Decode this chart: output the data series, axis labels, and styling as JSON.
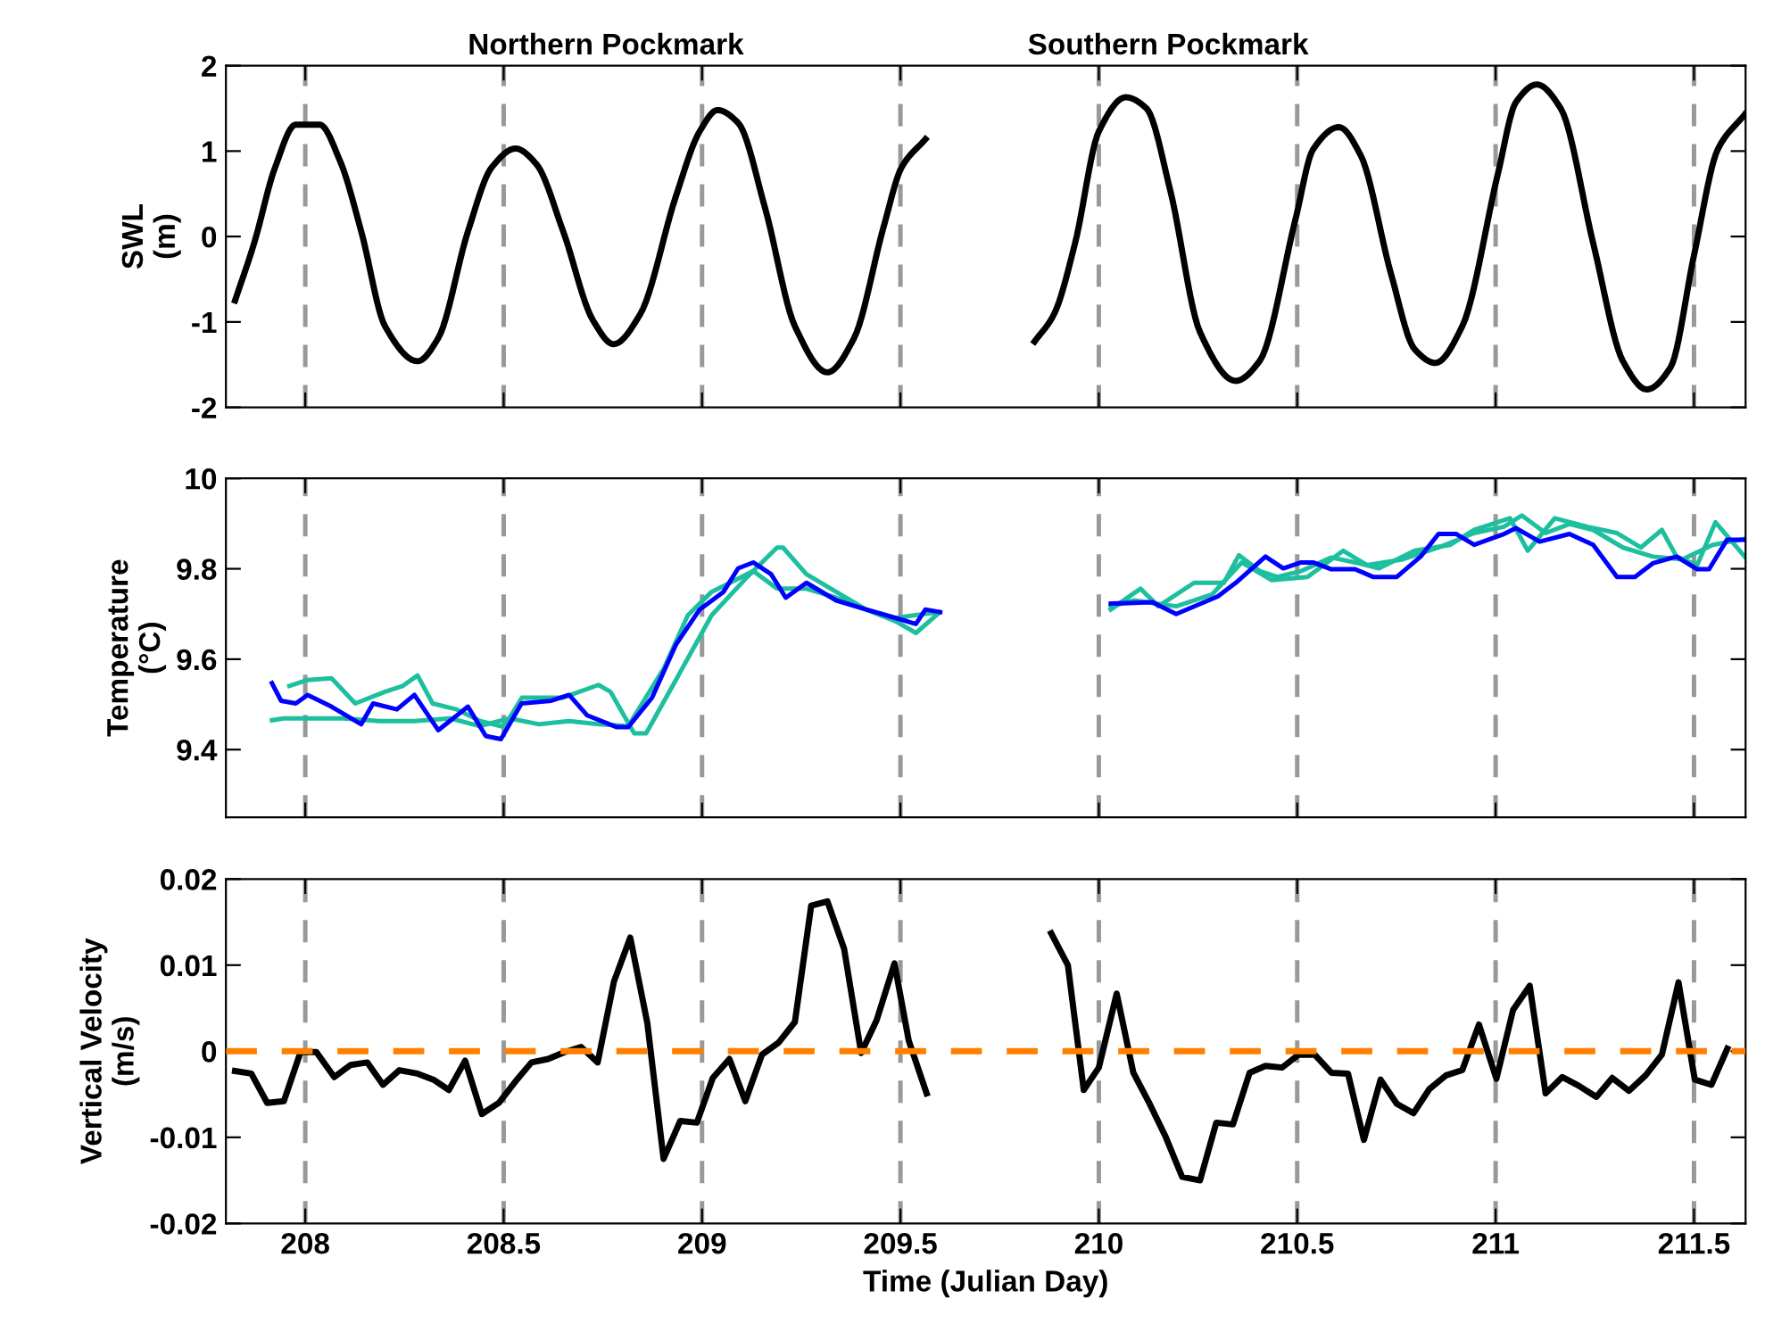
{
  "chart_data": [
    {
      "type": "line",
      "ylabel": "SWL\n(m)",
      "annotations": [
        "Northern Pockmark",
        "Southern Pockmark"
      ],
      "xlim": [
        207.8,
        211.63
      ],
      "xticks": [
        208,
        208.5,
        209,
        209.5,
        210,
        210.5,
        211,
        211.5
      ],
      "ylim": [
        -2,
        2
      ],
      "yticks": [
        -2,
        -1,
        0,
        1,
        2
      ],
      "tick_labels": "y",
      "grid": false,
      "ref_lines": [
        {
          "axis": "x",
          "value": 208,
          "color": "#999999",
          "line_style": "dashed"
        },
        {
          "axis": "x",
          "value": 208.5,
          "color": "#999999",
          "line_style": "dashed"
        },
        {
          "axis": "x",
          "value": 209,
          "color": "#999999",
          "line_style": "dashed"
        },
        {
          "axis": "x",
          "value": 209.5,
          "color": "#999999",
          "line_style": "dashed"
        },
        {
          "axis": "x",
          "value": 210,
          "color": "#999999",
          "line_style": "dashed"
        },
        {
          "axis": "x",
          "value": 210.5,
          "color": "#999999",
          "line_style": "dashed"
        },
        {
          "axis": "x",
          "value": 211,
          "color": "#999999",
          "line_style": "dashed"
        },
        {
          "axis": "x",
          "value": 211.5,
          "color": "#999999",
          "line_style": "dashed"
        }
      ],
      "series": [
        {
          "color": "#000000",
          "x": [
            207.823,
            207.871,
            207.924,
            207.976,
            208.036,
            208.088,
            208.141,
            208.201,
            208.283,
            208.335,
            208.41,
            208.47,
            208.53,
            208.582,
            208.65,
            208.725,
            208.777,
            208.844,
            208.934,
            208.994,
            209.039,
            209.091,
            209.159,
            209.234,
            209.316,
            209.383,
            209.458,
            209.503,
            209.563
          ],
          "values": [
            -0.75,
            -0.08,
            0.81,
            1.31,
            1.31,
            0.88,
            0.06,
            -1.05,
            -1.46,
            -1.19,
            0.06,
            0.81,
            1.03,
            0.85,
            0.06,
            -0.98,
            -1.26,
            -0.91,
            0.47,
            1.23,
            1.48,
            1.33,
            0.33,
            -1.05,
            -1.59,
            -1.19,
            0.12,
            0.81,
            1.14
          ]
        },
        {
          "color": "#000000",
          "x": [
            209.838,
            209.887,
            209.94,
            210.0,
            210.068,
            210.12,
            210.18,
            210.255,
            210.345,
            210.405,
            210.495,
            210.54,
            210.605,
            210.66,
            210.736,
            210.796,
            210.848,
            210.916,
            211.006,
            211.051,
            211.104,
            211.164,
            211.246,
            211.321,
            211.381,
            211.441,
            211.5,
            211.56,
            211.628
          ],
          "values": [
            -1.23,
            -0.91,
            -0.08,
            1.23,
            1.63,
            1.5,
            0.54,
            -1.12,
            -1.69,
            -1.46,
            0.19,
            1.02,
            1.28,
            0.95,
            -0.43,
            -1.32,
            -1.48,
            -1.05,
            0.74,
            1.57,
            1.78,
            1.5,
            -0.08,
            -1.46,
            -1.79,
            -1.53,
            -0.22,
            1.02,
            1.43
          ]
        }
      ]
    },
    {
      "type": "line",
      "ylabel": "Temperature\n(°C)",
      "xlim": [
        207.8,
        211.63
      ],
      "xticks": [
        208,
        208.5,
        209,
        209.5,
        210,
        210.5,
        211,
        211.5
      ],
      "ylim": [
        9.25,
        10
      ],
      "yticks": [
        9.4,
        9.6,
        9.8,
        10
      ],
      "tick_labels": "y",
      "grid": false,
      "ref_lines": [
        {
          "axis": "x",
          "value": 208,
          "color": "#999999",
          "line_style": "dashed"
        },
        {
          "axis": "x",
          "value": 208.5,
          "color": "#999999",
          "line_style": "dashed"
        },
        {
          "axis": "x",
          "value": 209,
          "color": "#999999",
          "line_style": "dashed"
        },
        {
          "axis": "x",
          "value": 209.5,
          "color": "#999999",
          "line_style": "dashed"
        },
        {
          "axis": "x",
          "value": 210,
          "color": "#999999",
          "line_style": "dashed"
        },
        {
          "axis": "x",
          "value": 210.5,
          "color": "#999999",
          "line_style": "dashed"
        },
        {
          "axis": "x",
          "value": 211,
          "color": "#999999",
          "line_style": "dashed"
        },
        {
          "axis": "x",
          "value": 211.5,
          "color": "#999999",
          "line_style": "dashed"
        }
      ],
      "series": [
        {
          "color": "#1dbf9f",
          "x": [
            207.96,
            208.006,
            208.066,
            208.126,
            208.201,
            208.246,
            208.283,
            208.321,
            208.381,
            208.441,
            208.501,
            208.546,
            208.65,
            208.739,
            208.769,
            208.829,
            208.859,
            208.934,
            209.024,
            209.114,
            209.189,
            209.204,
            209.263,
            209.338,
            209.413,
            209.488,
            209.539,
            209.599
          ],
          "values": [
            9.541,
            9.554,
            9.558,
            9.502,
            9.528,
            9.541,
            9.564,
            9.502,
            9.489,
            9.463,
            9.45,
            9.515,
            9.515,
            9.543,
            9.528,
            9.436,
            9.436,
            9.554,
            9.697,
            9.782,
            9.847,
            9.847,
            9.788,
            9.749,
            9.71,
            9.684,
            9.658,
            9.704
          ]
        },
        {
          "color": "#1dbf9f",
          "x": [
            207.916,
            207.946,
            208.006,
            208.096,
            208.186,
            208.275,
            208.365,
            208.44,
            208.515,
            208.59,
            208.665,
            208.739,
            208.814,
            208.904,
            208.964,
            209.024,
            209.084,
            209.129,
            209.189,
            209.263,
            209.338,
            209.413,
            209.488,
            209.533,
            209.599
          ],
          "values": [
            9.465,
            9.469,
            9.469,
            9.469,
            9.463,
            9.463,
            9.469,
            9.452,
            9.469,
            9.456,
            9.463,
            9.456,
            9.452,
            9.58,
            9.697,
            9.749,
            9.775,
            9.795,
            9.756,
            9.756,
            9.736,
            9.71,
            9.691,
            9.697,
            9.704
          ]
        },
        {
          "color": "#0000ff",
          "x": [
            207.916,
            207.939,
            207.976,
            208.006,
            208.066,
            208.141,
            208.171,
            208.231,
            208.275,
            208.335,
            208.41,
            208.455,
            208.493,
            208.545,
            208.62,
            208.665,
            208.71,
            208.784,
            208.814,
            208.874,
            208.934,
            208.994,
            209.054,
            209.091,
            209.129,
            209.174,
            209.211,
            209.263,
            209.338,
            209.413,
            209.488,
            209.539,
            209.563,
            209.6
          ],
          "values": [
            9.547,
            9.508,
            9.502,
            9.521,
            9.495,
            9.456,
            9.502,
            9.489,
            9.521,
            9.443,
            9.495,
            9.43,
            9.423,
            9.502,
            9.508,
            9.521,
            9.476,
            9.45,
            9.45,
            9.515,
            9.632,
            9.71,
            9.749,
            9.801,
            9.814,
            9.788,
            9.736,
            9.769,
            9.73,
            9.71,
            9.691,
            9.678,
            9.71,
            9.704
          ]
        },
        {
          "color": "#1dbf9f",
          "x": [
            210.03,
            210.105,
            210.15,
            210.24,
            210.315,
            210.353,
            210.405,
            210.45,
            210.51,
            210.586,
            210.646,
            210.706,
            210.796,
            210.886,
            210.946,
            211.036,
            211.081,
            211.149,
            211.231,
            211.306,
            211.366,
            211.419,
            211.456,
            211.508,
            211.554,
            211.59,
            211.628
          ],
          "values": [
            9.71,
            9.756,
            9.717,
            9.769,
            9.769,
            9.83,
            9.795,
            9.782,
            9.795,
            9.825,
            9.814,
            9.801,
            9.84,
            9.853,
            9.886,
            9.912,
            9.84,
            9.912,
            9.893,
            9.879,
            9.847,
            9.886,
            9.827,
            9.808,
            9.903,
            9.866,
            9.827
          ]
        },
        {
          "color": "#1dbf9f",
          "x": [
            210.03,
            210.09,
            210.195,
            210.285,
            210.36,
            210.435,
            210.526,
            210.616,
            210.676,
            210.766,
            210.856,
            210.946,
            211.021,
            211.066,
            211.126,
            211.186,
            211.246,
            211.321,
            211.396,
            211.471,
            211.547,
            211.628
          ],
          "values": [
            9.717,
            9.73,
            9.717,
            9.743,
            9.814,
            9.775,
            9.782,
            9.84,
            9.808,
            9.821,
            9.847,
            9.879,
            9.893,
            9.918,
            9.879,
            9.899,
            9.886,
            9.847,
            9.827,
            9.821,
            9.853,
            9.866
          ]
        },
        {
          "color": "#0000ff",
          "x": [
            210.03,
            210.135,
            210.195,
            210.3,
            210.345,
            210.42,
            210.465,
            210.51,
            210.54,
            210.586,
            210.646,
            210.691,
            210.751,
            210.811,
            210.856,
            210.901,
            210.946,
            211.021,
            211.051,
            211.111,
            211.186,
            211.246,
            211.306,
            211.351,
            211.396,
            211.456,
            211.508,
            211.538,
            211.583,
            211.628
          ],
          "values": [
            9.723,
            9.726,
            9.7,
            9.739,
            9.769,
            9.827,
            9.801,
            9.814,
            9.814,
            9.799,
            9.799,
            9.782,
            9.782,
            9.827,
            9.877,
            9.877,
            9.853,
            9.877,
            9.89,
            9.86,
            9.877,
            9.853,
            9.782,
            9.782,
            9.812,
            9.827,
            9.799,
            9.799,
            9.864,
            9.864
          ]
        }
      ]
    },
    {
      "type": "line",
      "ylabel": "Vertical Velocity\n(m/s)",
      "xlabel": "Time (Julian Day)",
      "xlim": [
        207.8,
        211.63
      ],
      "xticks": [
        208,
        208.5,
        209,
        209.5,
        210,
        210.5,
        211,
        211.5
      ],
      "ylim": [
        -0.02,
        0.02
      ],
      "yticks": [
        -0.02,
        -0.01,
        0,
        0.01,
        0.02
      ],
      "grid": false,
      "ref_lines": [
        {
          "axis": "x",
          "value": 208,
          "color": "#999999",
          "line_style": "dashed"
        },
        {
          "axis": "x",
          "value": 208.5,
          "color": "#999999",
          "line_style": "dashed"
        },
        {
          "axis": "x",
          "value": 209,
          "color": "#999999",
          "line_style": "dashed"
        },
        {
          "axis": "x",
          "value": 209.5,
          "color": "#999999",
          "line_style": "dashed"
        },
        {
          "axis": "x",
          "value": 210,
          "color": "#999999",
          "line_style": "dashed"
        },
        {
          "axis": "x",
          "value": 210.5,
          "color": "#999999",
          "line_style": "dashed"
        },
        {
          "axis": "x",
          "value": 211,
          "color": "#999999",
          "line_style": "dashed"
        },
        {
          "axis": "x",
          "value": 211.5,
          "color": "#999999",
          "line_style": "dashed"
        },
        {
          "axis": "y",
          "value": 0,
          "color": "#ff8000",
          "line_style": "dashed"
        }
      ],
      "series": [
        {
          "color": "#000000",
          "x": [
            207.823,
            207.864,
            207.904,
            207.946,
            207.988,
            208.028,
            208.073,
            208.114,
            208.156,
            208.196,
            208.237,
            208.283,
            208.323,
            208.362,
            208.403,
            208.445,
            208.488,
            208.53,
            208.57,
            208.612,
            208.654,
            208.695,
            208.737,
            208.778,
            208.819,
            208.862,
            208.903,
            208.945,
            208.987,
            209.027,
            209.069,
            209.109,
            209.151,
            209.193,
            209.234,
            209.275,
            209.316,
            209.358,
            209.401,
            209.44,
            209.485,
            209.521,
            209.566
          ],
          "values": [
            -0.0023,
            -0.0026,
            -0.006,
            -0.0058,
            -0.0001,
            -0.0001,
            -0.003,
            -0.0016,
            -0.0013,
            -0.0039,
            -0.0022,
            -0.0026,
            -0.0033,
            -0.0045,
            -0.0011,
            -0.0073,
            -0.006,
            -0.0035,
            -0.0013,
            -0.0009,
            -0.0001,
            0.0005,
            -0.0013,
            0.0081,
            0.0132,
            0.0033,
            -0.0125,
            -0.0081,
            -0.0083,
            -0.0031,
            -0.0009,
            -0.0058,
            -0.0004,
            0.001,
            0.0034,
            0.0169,
            0.0174,
            0.0119,
            -0.0002,
            0.0036,
            0.0102,
            0.0012,
            -0.0049
          ]
        },
        {
          "color": "#000000",
          "x": [
            209.88,
            209.922,
            209.962,
            210.0,
            210.045,
            210.087,
            210.128,
            210.168,
            210.21,
            210.255,
            210.296,
            210.338,
            210.38,
            210.42,
            210.462,
            210.503,
            210.544,
            210.586,
            210.628,
            210.668,
            210.71,
            210.751,
            210.793,
            210.833,
            210.875,
            210.916,
            210.958,
            211.002,
            211.044,
            211.086,
            211.126,
            211.168,
            211.209,
            211.254,
            211.294,
            211.336,
            211.378,
            211.419,
            211.461,
            211.502,
            211.544,
            211.584
          ],
          "values": [
            0.0137,
            0.01,
            -0.0045,
            -0.0019,
            0.0067,
            -0.0025,
            -0.0061,
            -0.0099,
            -0.0146,
            -0.015,
            -0.0083,
            -0.0085,
            -0.0025,
            -0.0017,
            -0.0019,
            -0.0004,
            -0.0004,
            -0.0025,
            -0.0026,
            -0.0103,
            -0.0033,
            -0.0061,
            -0.0072,
            -0.0044,
            -0.0028,
            -0.0022,
            0.0031,
            -0.0032,
            0.0048,
            0.0076,
            -0.0049,
            -0.003,
            -0.004,
            -0.0053,
            -0.0031,
            -0.0046,
            -0.0028,
            -0.0004,
            0.008,
            -0.0033,
            -0.0039,
            0.0003
          ]
        }
      ]
    }
  ]
}
